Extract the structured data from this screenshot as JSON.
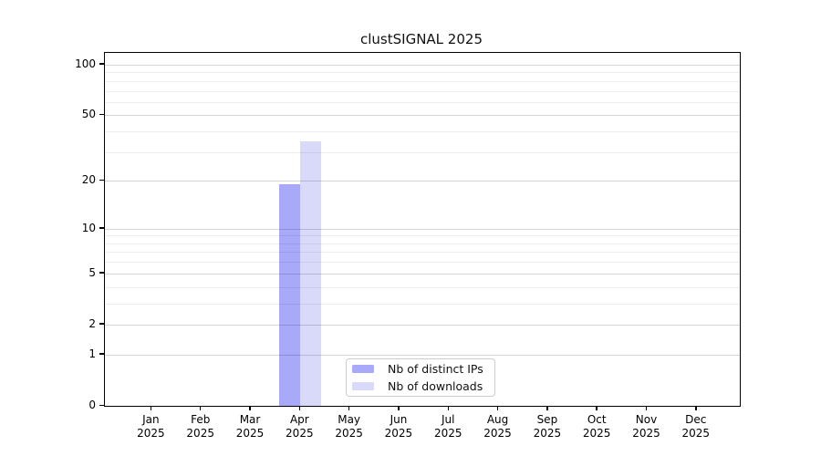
{
  "chart_data": {
    "type": "bar",
    "title": "clustSIGNAL 2025",
    "categories": [
      "Jan 2025",
      "Feb 2025",
      "Mar 2025",
      "Apr 2025",
      "May 2025",
      "Jun 2025",
      "Jul 2025",
      "Aug 2025",
      "Sep 2025",
      "Oct 2025",
      "Nov 2025",
      "Dec 2025"
    ],
    "series": [
      {
        "name": "Nb of distinct IPs",
        "color": "#a9a9f9",
        "values": [
          0,
          0,
          0,
          19,
          0,
          0,
          0,
          0,
          0,
          0,
          0,
          0
        ]
      },
      {
        "name": "Nb of downloads",
        "color": "#d9d9fa",
        "values": [
          0,
          0,
          0,
          35,
          0,
          0,
          0,
          0,
          0,
          0,
          0,
          0
        ]
      }
    ],
    "xlabel": "",
    "ylabel": "",
    "yscale": "log1p",
    "ylim": [
      0,
      117
    ],
    "yticks": [
      0,
      1,
      2,
      5,
      10,
      20,
      50,
      100
    ],
    "minor_gridlines": [
      3,
      4,
      6,
      7,
      8,
      9,
      30,
      40,
      60,
      70,
      80,
      90
    ],
    "grid": true,
    "grid_above_bars": true,
    "legend_position": "inside-bottom-center",
    "plot_border_color": "#000000",
    "background_color": "#ffffff"
  }
}
